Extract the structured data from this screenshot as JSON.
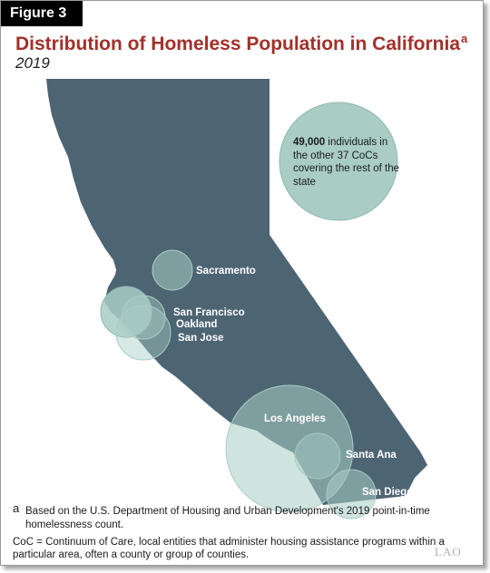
{
  "figure_label": "Figure 3",
  "title": "Distribution of Homeless Population in California",
  "title_marker": "a",
  "subtitle": "2019",
  "colors": {
    "title": "#a3302a",
    "state": "#4d6473",
    "bubble": "#a9cdc5",
    "bubble_stroke": "#8fb8ae"
  },
  "other_cocs": {
    "count": "49,000",
    "text": "individuals in the other 37 CoCs covering the rest of the state"
  },
  "cities": [
    {
      "name": "Sacramento"
    },
    {
      "name": "San Francisco"
    },
    {
      "name": "Oakland"
    },
    {
      "name": "San Jose"
    },
    {
      "name": "Los Angeles"
    },
    {
      "name": "Santa Ana"
    },
    {
      "name": "San Diego"
    }
  ],
  "footnote": {
    "marker": "a",
    "text": "Based on the U.S. Department of Housing and Urban Development's 2019 point-in-time homelessness count."
  },
  "coc_definition": "CoC = Continuum of Care, local entities that administer housing assistance programs within a particular area, often a county or group of counties.",
  "logo_text": "LAO"
}
